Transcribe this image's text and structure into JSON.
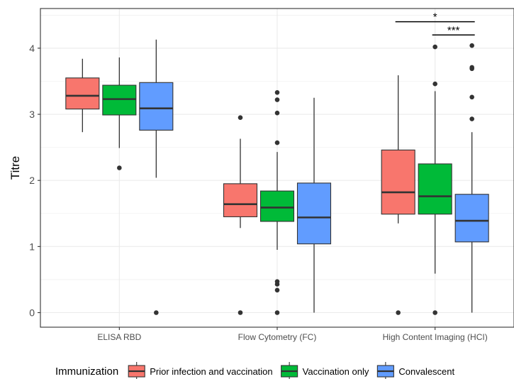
{
  "chart_data": {
    "type": "boxplot",
    "ylabel": "Titre",
    "xlabel": "",
    "ylim": [
      -0.22,
      4.6
    ],
    "y_ticks": [
      "0",
      "1",
      "2",
      "3",
      "4"
    ],
    "grid": true,
    "legend_position": "bottom",
    "legend_title": "Immunization",
    "categories": [
      "ELISA RBD",
      "Flow Cytometry (FC)",
      "High Content Imaging (HCI)"
    ],
    "series": [
      {
        "name": "Prior infection and vaccination",
        "color": "#F8766D",
        "boxes": [
          {
            "whisker_low": 2.73,
            "q1": 3.08,
            "median": 3.28,
            "q3": 3.55,
            "whisker_high": 3.84,
            "outliers": []
          },
          {
            "whisker_low": 1.28,
            "q1": 1.45,
            "median": 1.64,
            "q3": 1.95,
            "whisker_high": 2.63,
            "outliers": [
              0,
              2.95
            ]
          },
          {
            "whisker_low": 1.35,
            "q1": 1.49,
            "median": 1.82,
            "q3": 2.46,
            "whisker_high": 3.59,
            "outliers": [
              0
            ]
          }
        ]
      },
      {
        "name": "Vaccination only",
        "color": "#00BA38",
        "boxes": [
          {
            "whisker_low": 2.49,
            "q1": 2.99,
            "median": 3.23,
            "q3": 3.44,
            "whisker_high": 3.86,
            "outliers": [
              2.19
            ]
          },
          {
            "whisker_low": 0.95,
            "q1": 1.38,
            "median": 1.59,
            "q3": 1.84,
            "whisker_high": 2.43,
            "outliers": [
              0,
              0.34,
              0.43,
              0.47,
              2.57,
              3.02,
              3.22,
              3.33
            ]
          },
          {
            "whisker_low": 0.59,
            "q1": 1.49,
            "median": 1.76,
            "q3": 2.25,
            "whisker_high": 3.35,
            "outliers": [
              0,
              3.46,
              4.02
            ]
          }
        ]
      },
      {
        "name": "Convalescent",
        "color": "#619CFF",
        "boxes": [
          {
            "whisker_low": 2.04,
            "q1": 2.76,
            "median": 3.09,
            "q3": 3.48,
            "whisker_high": 4.13,
            "outliers": [
              0
            ]
          },
          {
            "whisker_low": 0,
            "q1": 1.04,
            "median": 1.44,
            "q3": 1.96,
            "whisker_high": 3.25,
            "outliers": []
          },
          {
            "whisker_low": 0,
            "q1": 1.07,
            "median": 1.39,
            "q3": 1.79,
            "whisker_high": 2.73,
            "outliers": [
              2.93,
              3.26,
              3.69,
              3.71,
              4.04
            ]
          }
        ]
      }
    ],
    "annotations": [
      {
        "label": "*",
        "category": "High Content Imaging (HCI)",
        "from_series": 0,
        "to_series": 2,
        "y": 4.4
      },
      {
        "label": "***",
        "category": "High Content Imaging (HCI)",
        "from_series": 1,
        "to_series": 2,
        "y": 4.2
      }
    ]
  }
}
